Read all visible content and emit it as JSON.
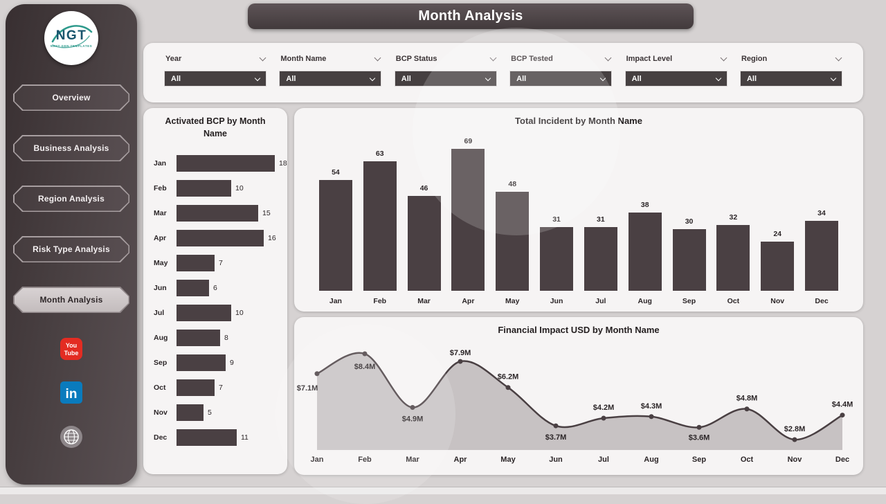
{
  "app": {
    "title": "Month Analysis"
  },
  "sidebar": {
    "logo": {
      "text": "NGT",
      "subtext": "NEXT GEN TEMPLATES"
    },
    "items": [
      {
        "label": "Overview",
        "active": false
      },
      {
        "label": "Business Analysis",
        "active": false
      },
      {
        "label": "Region Analysis",
        "active": false
      },
      {
        "label": "Risk Type Analysis",
        "active": false
      },
      {
        "label": "Month Analysis",
        "active": true
      }
    ],
    "social": [
      "youtube",
      "linkedin",
      "website"
    ]
  },
  "filters": [
    {
      "label": "Year",
      "value": "All"
    },
    {
      "label": "Month Name",
      "value": "All"
    },
    {
      "label": "BCP Status",
      "value": "All"
    },
    {
      "label": "BCP Tested",
      "value": "All"
    },
    {
      "label": "Impact Level",
      "value": "All"
    },
    {
      "label": "Region",
      "value": "All"
    }
  ],
  "chart_data": [
    {
      "type": "bar",
      "orientation": "horizontal",
      "title": "Activated BCP by Month Name",
      "categories": [
        "Jan",
        "Feb",
        "Mar",
        "Apr",
        "May",
        "Jun",
        "Jul",
        "Aug",
        "Sep",
        "Oct",
        "Nov",
        "Dec"
      ],
      "values": [
        18,
        10,
        15,
        16,
        7,
        6,
        10,
        8,
        9,
        7,
        5,
        11
      ],
      "xlim": [
        0,
        18
      ]
    },
    {
      "type": "bar",
      "orientation": "vertical",
      "title": "Total Incident by Month Name",
      "categories": [
        "Jan",
        "Feb",
        "Mar",
        "Apr",
        "May",
        "Jun",
        "Jul",
        "Aug",
        "Sep",
        "Oct",
        "Nov",
        "Dec"
      ],
      "values": [
        54,
        63,
        46,
        69,
        48,
        31,
        31,
        38,
        30,
        32,
        24,
        34
      ],
      "ylim": [
        0,
        69
      ]
    },
    {
      "type": "area",
      "title": "Financial Impact USD by Month Name",
      "categories": [
        "Jan",
        "Feb",
        "Mar",
        "Apr",
        "May",
        "Jun",
        "Jul",
        "Aug",
        "Sep",
        "Oct",
        "Nov",
        "Dec"
      ],
      "values": [
        7.1,
        8.4,
        4.9,
        7.9,
        6.2,
        3.7,
        4.2,
        4.3,
        3.6,
        4.8,
        2.8,
        4.4
      ],
      "labels": [
        "$7.1M",
        "$8.4M",
        "$4.9M",
        "$7.9M",
        "$6.2M",
        "$3.7M",
        "$4.2M",
        "$4.3M",
        "$3.6M",
        "$4.8M",
        "$2.8M",
        "$4.4M"
      ]
    }
  ],
  "colors": {
    "bar": "#4a4043",
    "area_fill": "#c7c2c3",
    "line": "#4a4043",
    "sidebar_dark": "#4b4244",
    "panel": "#f6f4f4",
    "page_bg": "#d6d2d2",
    "active_nav_bg": "#cdc6c7",
    "youtube_red": "#e32c22",
    "linkedin_blue": "#0a7bbd",
    "text_dark": "#2b2527"
  }
}
